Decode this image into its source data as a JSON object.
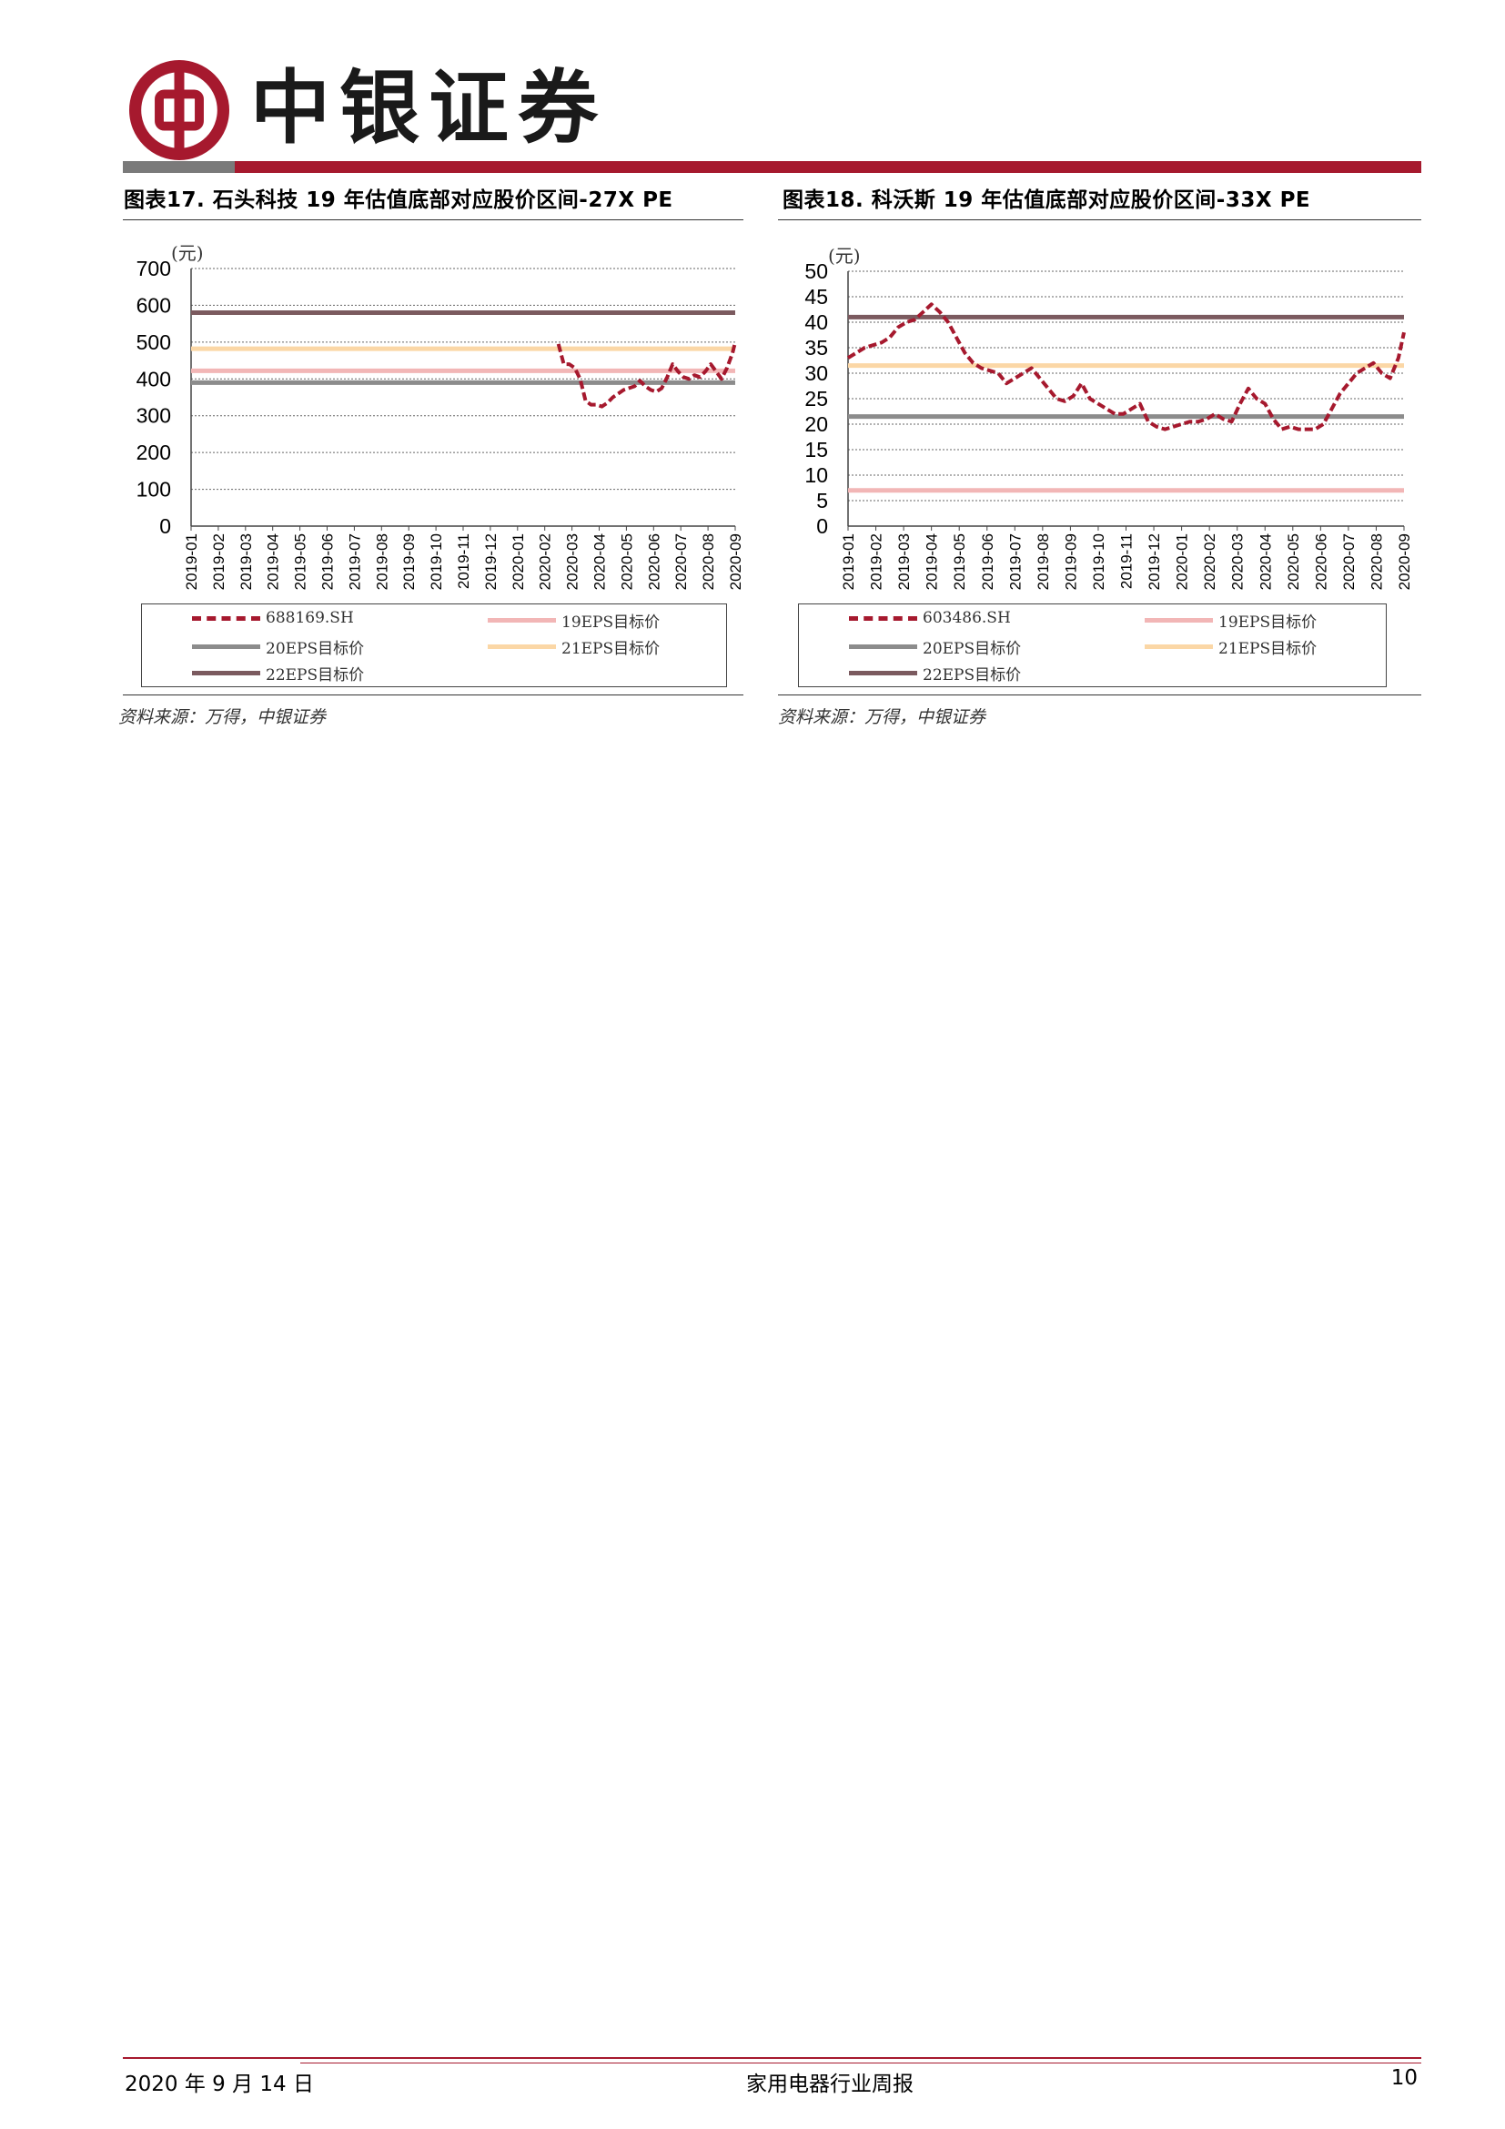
{
  "header": {
    "brand": "中银证券",
    "colors": {
      "brand_red": "#a6192e",
      "grey": "#7a7a7a"
    }
  },
  "charts": [
    {
      "title": "图表17. 石头科技 19 年估值底部对应股价区间-27X PE",
      "source": "资料来源：万得，中银证券",
      "legend": [
        {
          "label": "688169.SH",
          "style": "dashed",
          "color": "#a6192e"
        },
        {
          "label": "19EPS目标价",
          "style": "solid",
          "color": "#f2b6b6"
        },
        {
          "label": "20EPS目标价",
          "style": "solid",
          "color": "#8c8c8c"
        },
        {
          "label": "21EPS目标价",
          "style": "solid",
          "color": "#fbd7a6"
        },
        {
          "label": "22EPS目标价",
          "style": "solid",
          "color": "#7b5a5f"
        }
      ]
    },
    {
      "title": "图表18. 科沃斯 19 年估值底部对应股价区间-33X PE",
      "source": "资料来源：万得，中银证券",
      "legend": [
        {
          "label": "603486.SH",
          "style": "dashed",
          "color": "#a6192e"
        },
        {
          "label": "19EPS目标价",
          "style": "solid",
          "color": "#f2b6b6"
        },
        {
          "label": "20EPS目标价",
          "style": "solid",
          "color": "#8c8c8c"
        },
        {
          "label": "21EPS目标价",
          "style": "solid",
          "color": "#fbd7a6"
        },
        {
          "label": "22EPS目标价",
          "style": "solid",
          "color": "#7b5a5f"
        }
      ]
    }
  ],
  "chart_data": [
    {
      "type": "line",
      "unit_label": "(元)",
      "ylim": [
        0,
        700
      ],
      "yticks": [
        0,
        100,
        200,
        300,
        400,
        500,
        600,
        700
      ],
      "categories": [
        "2019-01",
        "2019-02",
        "2019-03",
        "2019-04",
        "2019-05",
        "2019-06",
        "2019-07",
        "2019-08",
        "2019-09",
        "2019-10",
        "2019-11",
        "2019-12",
        "2020-01",
        "2020-02",
        "2020-03",
        "2020-04",
        "2020-05",
        "2020-06",
        "2020-07",
        "2020-08",
        "2020-09"
      ],
      "grid": true,
      "hlines": [
        {
          "name": "22EPS目标价",
          "value": 580
        },
        {
          "name": "21EPS目标价",
          "value": 482
        },
        {
          "name": "19EPS目标价",
          "value": 422
        },
        {
          "name": "20EPS目标价",
          "value": 390
        }
      ],
      "series": [
        {
          "name": "688169.SH",
          "x": [
            13.5,
            13.7,
            13.9,
            14.1,
            14.3,
            14.5,
            14.7,
            14.9,
            15.1,
            15.3,
            15.5,
            15.7,
            15.9,
            16.1,
            16.3,
            16.5,
            16.7,
            16.9,
            17.1,
            17.3,
            17.5,
            17.7,
            17.9,
            18.1,
            18.3,
            18.5,
            18.7,
            18.9,
            19.1,
            19.3,
            19.5,
            19.7,
            19.9,
            20.0
          ],
          "y": [
            495,
            440,
            440,
            430,
            400,
            340,
            330,
            330,
            325,
            335,
            350,
            360,
            370,
            375,
            380,
            395,
            380,
            370,
            365,
            375,
            405,
            440,
            420,
            405,
            400,
            410,
            405,
            420,
            440,
            420,
            400,
            430,
            470,
            500
          ]
        }
      ]
    },
    {
      "type": "line",
      "unit_label": "(元)",
      "ylim": [
        0,
        50
      ],
      "yticks": [
        0,
        5,
        10,
        15,
        20,
        25,
        30,
        35,
        40,
        45,
        50
      ],
      "categories": [
        "2019-01",
        "2019-02",
        "2019-03",
        "2019-04",
        "2019-05",
        "2019-06",
        "2019-07",
        "2019-08",
        "2019-09",
        "2019-10",
        "2019-11",
        "2019-12",
        "2020-01",
        "2020-02",
        "2020-03",
        "2020-04",
        "2020-05",
        "2020-06",
        "2020-07",
        "2020-08",
        "2020-09"
      ],
      "grid": true,
      "hlines": [
        {
          "name": "22EPS目标价",
          "value": 41
        },
        {
          "name": "21EPS目标价",
          "value": 31.5
        },
        {
          "name": "20EPS目标价",
          "value": 21.5
        },
        {
          "name": "19EPS目标价",
          "value": 7
        }
      ],
      "series": [
        {
          "name": "603486.SH",
          "x": [
            0,
            0.3,
            0.6,
            0.9,
            1.2,
            1.5,
            1.8,
            2.1,
            2.4,
            2.7,
            3.0,
            3.3,
            3.6,
            3.9,
            4.2,
            4.5,
            4.8,
            5.1,
            5.4,
            5.7,
            6.0,
            6.3,
            6.6,
            6.9,
            7.2,
            7.5,
            7.8,
            8.1,
            8.4,
            8.7,
            9.0,
            9.3,
            9.6,
            9.9,
            10.2,
            10.5,
            10.8,
            11.1,
            11.4,
            11.7,
            12.0,
            12.3,
            12.6,
            12.9,
            13.2,
            13.5,
            13.8,
            14.1,
            14.4,
            14.7,
            15.0,
            15.3,
            15.6,
            15.9,
            16.2,
            16.5,
            16.8,
            17.1,
            17.4,
            17.7,
            18.0,
            18.3,
            18.6,
            18.9,
            19.2,
            19.5,
            19.8,
            20.0
          ],
          "y": [
            33,
            34,
            35,
            35.5,
            36,
            37,
            39,
            40,
            40.5,
            42,
            43.5,
            42,
            40,
            37,
            34,
            32,
            31,
            30.5,
            30,
            28,
            29,
            30,
            31,
            29,
            27,
            25,
            24.5,
            25.5,
            28,
            25,
            24,
            23,
            22,
            22,
            23,
            24,
            20.5,
            19.5,
            19,
            19.5,
            20,
            20.5,
            20.5,
            21,
            22,
            21,
            20.5,
            24,
            27,
            25,
            24,
            21,
            19,
            19.5,
            19,
            19,
            19,
            20,
            23,
            26,
            28,
            30,
            31,
            32,
            30,
            29,
            33,
            38
          ]
        }
      ]
    }
  ],
  "footer": {
    "date": "2020 年 9 月 14 日",
    "report": "家用电器行业周报",
    "page": "10"
  }
}
